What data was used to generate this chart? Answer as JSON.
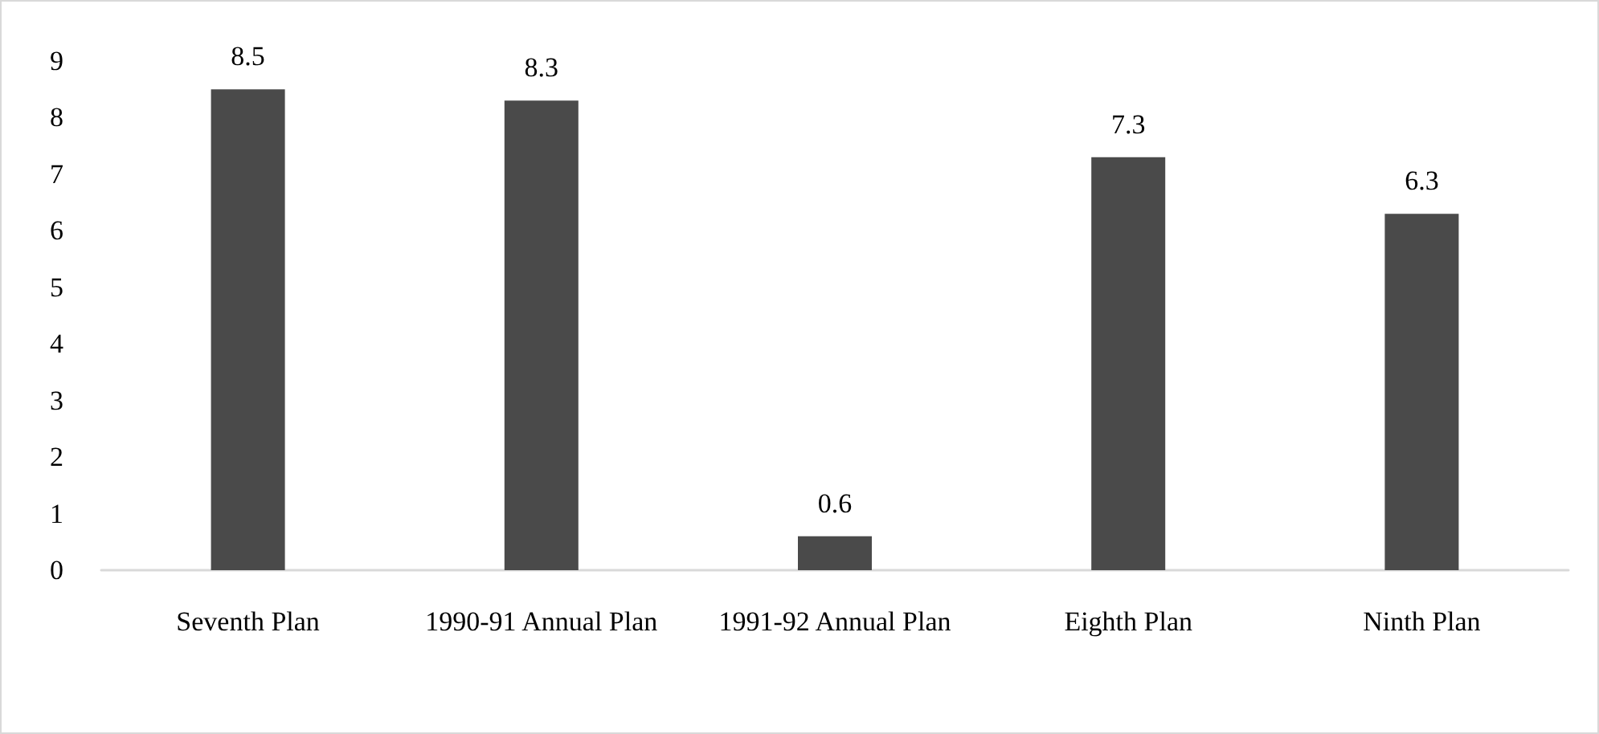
{
  "chart_data": {
    "type": "bar",
    "categories": [
      "Seventh Plan",
      "1990-91 Annual Plan",
      "1991-92 Annual Plan",
      "Eighth Plan",
      "Ninth Plan"
    ],
    "values": [
      8.5,
      8.3,
      0.6,
      7.3,
      6.3
    ],
    "color": "#4a4a4a",
    "ylim": [
      0,
      9
    ],
    "yticks": [
      0,
      1,
      2,
      3,
      4,
      5,
      6,
      7,
      8,
      9
    ],
    "grid": false,
    "data_labels": true
  }
}
